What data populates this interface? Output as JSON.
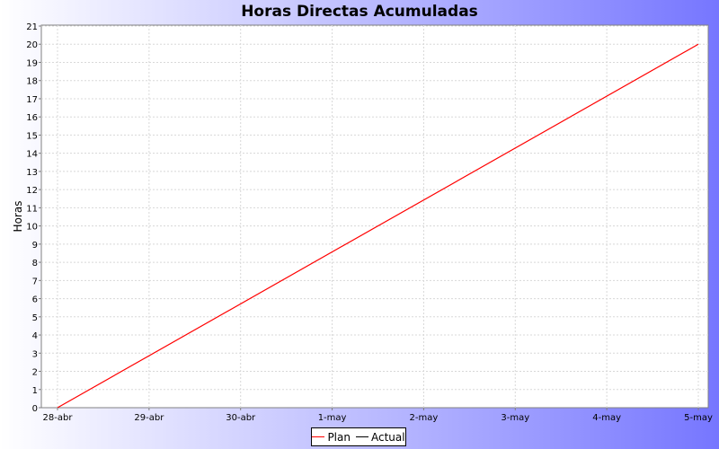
{
  "chart_data": {
    "type": "line",
    "title": "Horas Directas Acumuladas",
    "xlabel": "",
    "ylabel": "Horas",
    "x_ticks": [
      "28-abr",
      "29-abr",
      "30-abr",
      "1-may",
      "2-may",
      "3-may",
      "4-may",
      "5-may"
    ],
    "y_ticks": [
      0,
      1,
      2,
      3,
      4,
      5,
      6,
      7,
      8,
      9,
      10,
      11,
      12,
      13,
      14,
      15,
      16,
      17,
      18,
      19,
      20,
      21
    ],
    "xlim": [
      "28-abr",
      "5-may"
    ],
    "ylim": [
      0,
      21
    ],
    "grid": true,
    "legend_position": "bottom-center",
    "series": [
      {
        "name": "Plan",
        "color": "#ff0000",
        "points": [
          {
            "x": "28-abr",
            "y": 0
          },
          {
            "x": "5-may",
            "y": 20
          }
        ]
      },
      {
        "name": "Actual",
        "color": "#000000",
        "points": []
      }
    ]
  }
}
